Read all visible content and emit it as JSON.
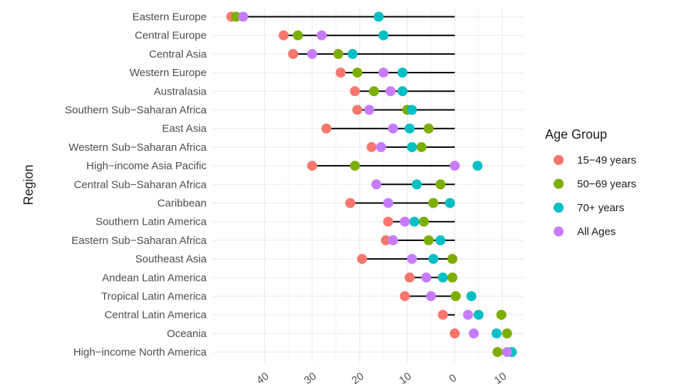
{
  "chart_data": {
    "type": "scatter",
    "ylabel": "Region",
    "xlabel": "",
    "xlim": [
      -51,
      14.5
    ],
    "x_ticks": [
      -40,
      -30,
      -20,
      -10,
      0,
      10
    ],
    "x_tick_labels": [
      "40",
      "30",
      "20",
      "10",
      "0",
      "10"
    ],
    "grid": true,
    "legend_position": "right",
    "legend_title": "Age Group",
    "categories": [
      "Eastern Europe",
      "Central Europe",
      "Central Asia",
      "Western Europe",
      "Australasia",
      "Southern Sub−Saharan Africa",
      "East Asia",
      "Western Sub−Saharan Africa",
      "High−income Asia Pacific",
      "Central Sub−Saharan Africa",
      "Caribbean",
      "Southern Latin America",
      "Eastern Sub−Saharan Africa",
      "Southeast Asia",
      "Andean Latin America",
      "Tropical Latin America",
      "Central Latin America",
      "Oceania",
      "High−income North America"
    ],
    "series": [
      {
        "name": "15−49 years",
        "color": "#F8766D",
        "values": [
          -47,
          -36,
          -34,
          -24,
          -21,
          -20.5,
          -27,
          -17.5,
          -30,
          null,
          -22,
          -14,
          -14.5,
          -19.5,
          -9.5,
          -10.5,
          -2.5,
          0,
          null
        ]
      },
      {
        "name": "50−69 years",
        "color": "#7CAE00",
        "values": [
          -46,
          -33,
          -24.5,
          -20.5,
          -17,
          -10,
          -5.5,
          -7,
          -21,
          -3,
          -4.5,
          -6.5,
          -5.5,
          -0.5,
          -0.5,
          0.2,
          9.8,
          11,
          9
        ]
      },
      {
        "name": "70+ years",
        "color": "#00BFC4",
        "values": [
          -16,
          -15,
          -21.5,
          -11,
          -11,
          -9,
          -9.5,
          -9,
          4.8,
          -8,
          -1,
          -8.5,
          -3,
          -4.5,
          -2.5,
          3.5,
          5,
          8.8,
          12
        ]
      },
      {
        "name": "All Ages",
        "color": "#C77CFF",
        "values": [
          -44.5,
          -28,
          -30,
          -15,
          -13.5,
          -18,
          -13,
          -15.5,
          0,
          -16.5,
          -14,
          -10.5,
          -13,
          -9,
          -6,
          -5,
          2.8,
          4,
          11
        ]
      }
    ]
  }
}
